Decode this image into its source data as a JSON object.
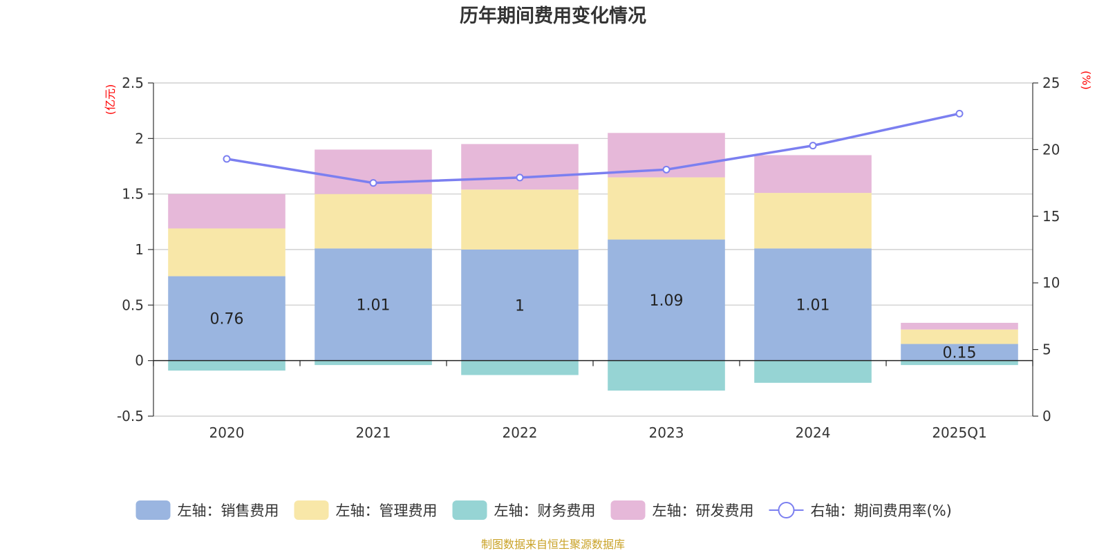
{
  "chart_data": {
    "type": "bar",
    "stacked": true,
    "title": "历年期间费用变化情况",
    "categories": [
      "2020",
      "2021",
      "2022",
      "2023",
      "2024",
      "2025Q1"
    ],
    "left_axis": {
      "unit": "(亿元)",
      "min": -0.5,
      "max": 2.5,
      "ticks": [
        -0.5,
        0,
        0.5,
        1,
        1.5,
        2,
        2.5
      ],
      "tick_labels": [
        "-0.5",
        "0",
        "0.5",
        "1",
        "1.5",
        "2",
        "2.5"
      ]
    },
    "right_axis": {
      "unit": "(%)",
      "min": 0,
      "max": 25,
      "ticks": [
        0,
        5,
        10,
        15,
        20,
        25
      ],
      "tick_labels": [
        "0",
        "5",
        "10",
        "15",
        "20",
        "25"
      ]
    },
    "series": [
      {
        "name": "左轴：销售费用",
        "axis": "left",
        "type": "bar",
        "color": "#9ab5e0",
        "values": [
          0.76,
          1.01,
          1.0,
          1.09,
          1.01,
          0.15
        ],
        "labels": [
          "0.76",
          "1.01",
          "1",
          "1.09",
          "1.01",
          "0.15"
        ]
      },
      {
        "name": "左轴：管理费用",
        "axis": "left",
        "type": "bar",
        "color": "#f8e7a8",
        "values": [
          0.43,
          0.49,
          0.54,
          0.56,
          0.5,
          0.13
        ]
      },
      {
        "name": "左轴：财务费用",
        "axis": "left",
        "type": "bar",
        "color": "#96d4d4",
        "values": [
          -0.09,
          -0.04,
          -0.13,
          -0.27,
          -0.2,
          -0.04
        ]
      },
      {
        "name": "左轴：研发费用",
        "axis": "left",
        "type": "bar",
        "color": "#e6b8d9",
        "values": [
          0.31,
          0.4,
          0.41,
          0.4,
          0.34,
          0.06
        ]
      },
      {
        "name": "右轴：期间费用率(%)",
        "axis": "right",
        "type": "line",
        "color": "#7b7ff0",
        "values": [
          19.3,
          17.5,
          17.9,
          18.5,
          20.3,
          22.7
        ]
      }
    ],
    "legend_position": "bottom",
    "source": "制图数据来自恒生聚源数据库"
  }
}
